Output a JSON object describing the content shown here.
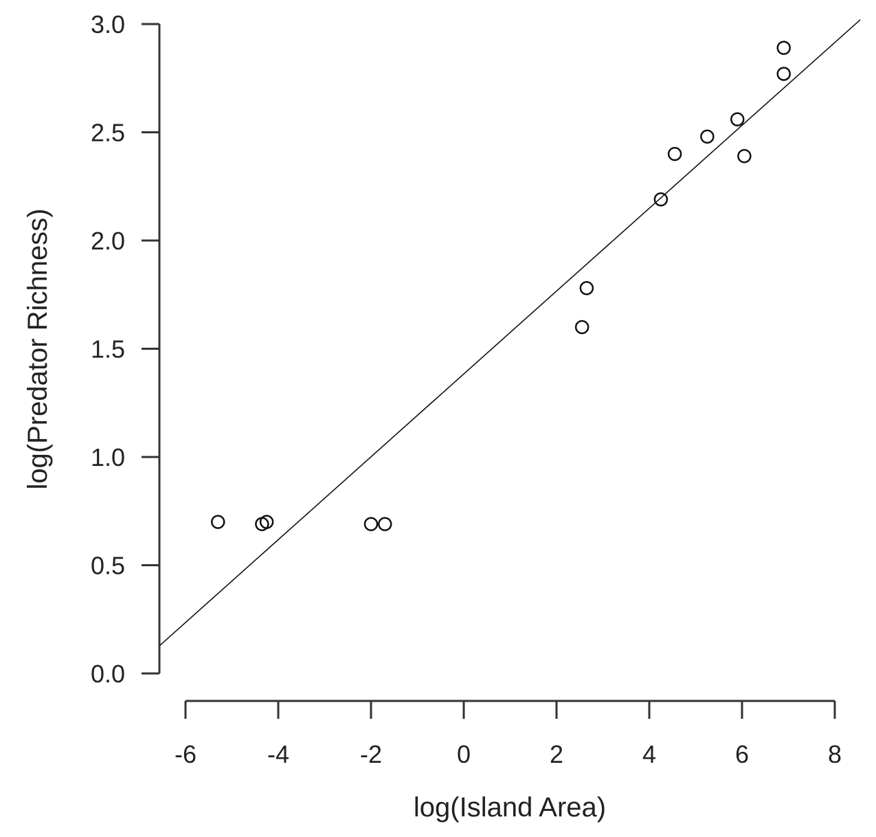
{
  "chart_data": {
    "type": "scatter",
    "xlabel": "log(Island Area)",
    "ylabel": "log(Predator Richness)",
    "xlim": [
      -6,
      8
    ],
    "ylim": [
      0,
      3
    ],
    "x_ticks": [
      "-6",
      "-4",
      "-2",
      "0",
      "2",
      "4",
      "6",
      "8"
    ],
    "y_ticks": [
      "0.0",
      "0.5",
      "1.0",
      "1.5",
      "2.0",
      "2.5",
      "3.0"
    ],
    "points": [
      {
        "x": -5.3,
        "y": 0.7
      },
      {
        "x": -4.35,
        "y": 0.69
      },
      {
        "x": -4.25,
        "y": 0.7
      },
      {
        "x": -2.0,
        "y": 0.69
      },
      {
        "x": -1.7,
        "y": 0.69
      },
      {
        "x": 2.55,
        "y": 1.6
      },
      {
        "x": 2.65,
        "y": 1.78
      },
      {
        "x": 4.25,
        "y": 2.19
      },
      {
        "x": 4.55,
        "y": 2.4
      },
      {
        "x": 5.25,
        "y": 2.48
      },
      {
        "x": 5.9,
        "y": 2.56
      },
      {
        "x": 6.05,
        "y": 2.39
      },
      {
        "x": 6.9,
        "y": 2.77
      },
      {
        "x": 6.9,
        "y": 2.89
      }
    ],
    "fit_line": {
      "x1": -6.55,
      "y1": 0.13,
      "x2": 8.55,
      "y2": 3.02
    },
    "grid": false,
    "colors": {
      "points": "#111111",
      "line": "#111111",
      "axes": "#333333"
    }
  }
}
